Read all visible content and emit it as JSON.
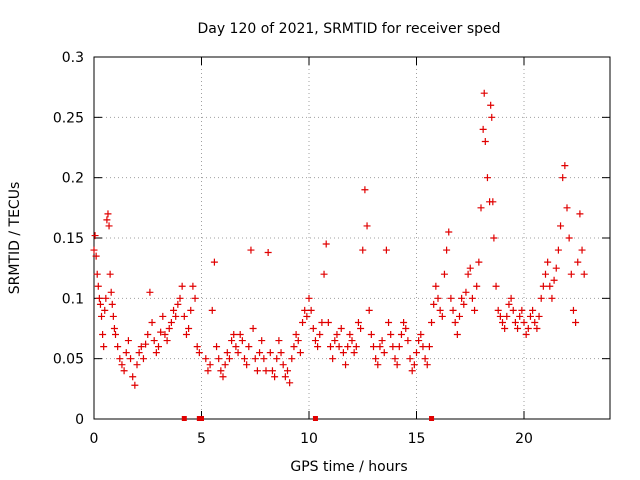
{
  "chart_data": {
    "type": "scatter",
    "title": "Day 120 of 2021, SRMTID for receiver sped",
    "xlabel": "GPS time / hours",
    "ylabel": "SRMTID / TECUs",
    "xlim": [
      0,
      24
    ],
    "ylim": [
      0,
      0.3
    ],
    "xticks": [
      0,
      5,
      10,
      15,
      20
    ],
    "xtick_labels": [
      "0",
      "5",
      "10",
      "15",
      "20"
    ],
    "yticks": [
      0,
      0.05,
      0.1,
      0.15,
      0.2,
      0.25,
      0.3
    ],
    "ytick_labels": [
      "0",
      "0.05",
      "0.1",
      "0.15",
      "0.2",
      "0.25",
      "0.3"
    ],
    "grid": true,
    "marker": "+",
    "color": "#e00000",
    "series": [
      {
        "name": "SRMTID",
        "points": [
          [
            0.0,
            0.14
          ],
          [
            0.05,
            0.152
          ],
          [
            0.1,
            0.135
          ],
          [
            0.15,
            0.12
          ],
          [
            0.2,
            0.11
          ],
          [
            0.25,
            0.1
          ],
          [
            0.3,
            0.095
          ],
          [
            0.35,
            0.085
          ],
          [
            0.4,
            0.07
          ],
          [
            0.45,
            0.06
          ],
          [
            0.5,
            0.09
          ],
          [
            0.55,
            0.1
          ],
          [
            0.6,
            0.165
          ],
          [
            0.65,
            0.17
          ],
          [
            0.7,
            0.16
          ],
          [
            0.75,
            0.12
          ],
          [
            0.8,
            0.105
          ],
          [
            0.85,
            0.095
          ],
          [
            0.9,
            0.085
          ],
          [
            0.95,
            0.075
          ],
          [
            1.0,
            0.07
          ],
          [
            1.1,
            0.06
          ],
          [
            1.2,
            0.05
          ],
          [
            1.3,
            0.045
          ],
          [
            1.4,
            0.04
          ],
          [
            1.5,
            0.055
          ],
          [
            1.6,
            0.065
          ],
          [
            1.7,
            0.05
          ],
          [
            1.8,
            0.035
          ],
          [
            1.9,
            0.028
          ],
          [
            2.0,
            0.045
          ],
          [
            2.1,
            0.055
          ],
          [
            2.2,
            0.06
          ],
          [
            2.3,
            0.05
          ],
          [
            2.4,
            0.062
          ],
          [
            2.5,
            0.07
          ],
          [
            2.6,
            0.105
          ],
          [
            2.7,
            0.08
          ],
          [
            2.8,
            0.065
          ],
          [
            2.9,
            0.055
          ],
          [
            3.0,
            0.06
          ],
          [
            3.1,
            0.072
          ],
          [
            3.2,
            0.085
          ],
          [
            3.3,
            0.07
          ],
          [
            3.4,
            0.065
          ],
          [
            3.5,
            0.075
          ],
          [
            3.6,
            0.08
          ],
          [
            3.7,
            0.09
          ],
          [
            3.8,
            0.085
          ],
          [
            3.9,
            0.095
          ],
          [
            4.0,
            0.1
          ],
          [
            4.1,
            0.11
          ],
          [
            4.2,
            0.085
          ],
          [
            4.3,
            0.07
          ],
          [
            4.4,
            0.075
          ],
          [
            4.5,
            0.09
          ],
          [
            4.6,
            0.11
          ],
          [
            4.7,
            0.1
          ],
          [
            4.8,
            0.06
          ],
          [
            4.9,
            0.055
          ],
          [
            5.2,
            0.05
          ],
          [
            5.3,
            0.04
          ],
          [
            5.4,
            0.045
          ],
          [
            5.5,
            0.09
          ],
          [
            5.6,
            0.13
          ],
          [
            5.7,
            0.06
          ],
          [
            5.8,
            0.05
          ],
          [
            5.9,
            0.04
          ],
          [
            6.0,
            0.035
          ],
          [
            6.1,
            0.045
          ],
          [
            6.2,
            0.055
          ],
          [
            6.3,
            0.05
          ],
          [
            6.4,
            0.065
          ],
          [
            6.5,
            0.07
          ],
          [
            6.6,
            0.06
          ],
          [
            6.7,
            0.055
          ],
          [
            6.8,
            0.07
          ],
          [
            6.9,
            0.065
          ],
          [
            7.0,
            0.05
          ],
          [
            7.1,
            0.045
          ],
          [
            7.2,
            0.06
          ],
          [
            7.3,
            0.14
          ],
          [
            7.4,
            0.075
          ],
          [
            7.5,
            0.05
          ],
          [
            7.6,
            0.04
          ],
          [
            7.7,
            0.055
          ],
          [
            7.8,
            0.065
          ],
          [
            7.9,
            0.05
          ],
          [
            8.0,
            0.04
          ],
          [
            8.1,
            0.138
          ],
          [
            8.2,
            0.055
          ],
          [
            8.3,
            0.04
          ],
          [
            8.4,
            0.035
          ],
          [
            8.5,
            0.05
          ],
          [
            8.6,
            0.065
          ],
          [
            8.7,
            0.055
          ],
          [
            8.8,
            0.045
          ],
          [
            8.9,
            0.035
          ],
          [
            9.0,
            0.04
          ],
          [
            9.1,
            0.03
          ],
          [
            9.2,
            0.05
          ],
          [
            9.3,
            0.06
          ],
          [
            9.4,
            0.07
          ],
          [
            9.5,
            0.065
          ],
          [
            9.6,
            0.055
          ],
          [
            9.7,
            0.08
          ],
          [
            9.8,
            0.09
          ],
          [
            9.9,
            0.085
          ],
          [
            10.0,
            0.1
          ],
          [
            10.1,
            0.09
          ],
          [
            10.2,
            0.075
          ],
          [
            10.3,
            0.065
          ],
          [
            10.4,
            0.06
          ],
          [
            10.5,
            0.07
          ],
          [
            10.6,
            0.08
          ],
          [
            10.7,
            0.12
          ],
          [
            10.8,
            0.145
          ],
          [
            10.9,
            0.08
          ],
          [
            11.0,
            0.06
          ],
          [
            11.1,
            0.05
          ],
          [
            11.2,
            0.065
          ],
          [
            11.3,
            0.07
          ],
          [
            11.4,
            0.06
          ],
          [
            11.5,
            0.075
          ],
          [
            11.6,
            0.055
          ],
          [
            11.7,
            0.045
          ],
          [
            11.8,
            0.06
          ],
          [
            11.9,
            0.07
          ],
          [
            12.0,
            0.065
          ],
          [
            12.1,
            0.055
          ],
          [
            12.2,
            0.06
          ],
          [
            12.3,
            0.08
          ],
          [
            12.4,
            0.075
          ],
          [
            12.5,
            0.14
          ],
          [
            12.6,
            0.19
          ],
          [
            12.7,
            0.16
          ],
          [
            12.8,
            0.09
          ],
          [
            12.9,
            0.07
          ],
          [
            13.0,
            0.06
          ],
          [
            13.1,
            0.05
          ],
          [
            13.2,
            0.045
          ],
          [
            13.3,
            0.06
          ],
          [
            13.4,
            0.065
          ],
          [
            13.5,
            0.055
          ],
          [
            13.6,
            0.14
          ],
          [
            13.7,
            0.08
          ],
          [
            13.8,
            0.07
          ],
          [
            13.9,
            0.06
          ],
          [
            14.0,
            0.05
          ],
          [
            14.1,
            0.045
          ],
          [
            14.2,
            0.06
          ],
          [
            14.3,
            0.07
          ],
          [
            14.4,
            0.08
          ],
          [
            14.5,
            0.075
          ],
          [
            14.6,
            0.065
          ],
          [
            14.7,
            0.05
          ],
          [
            14.8,
            0.04
          ],
          [
            14.9,
            0.045
          ],
          [
            15.0,
            0.055
          ],
          [
            15.1,
            0.065
          ],
          [
            15.2,
            0.07
          ],
          [
            15.3,
            0.06
          ],
          [
            15.4,
            0.05
          ],
          [
            15.5,
            0.045
          ],
          [
            15.6,
            0.06
          ],
          [
            15.7,
            0.08
          ],
          [
            15.8,
            0.095
          ],
          [
            15.9,
            0.11
          ],
          [
            16.0,
            0.1
          ],
          [
            16.1,
            0.09
          ],
          [
            16.2,
            0.085
          ],
          [
            16.3,
            0.12
          ],
          [
            16.4,
            0.14
          ],
          [
            16.5,
            0.155
          ],
          [
            16.6,
            0.1
          ],
          [
            16.7,
            0.09
          ],
          [
            16.8,
            0.08
          ],
          [
            16.9,
            0.07
          ],
          [
            17.0,
            0.085
          ],
          [
            17.1,
            0.1
          ],
          [
            17.2,
            0.095
          ],
          [
            17.3,
            0.105
          ],
          [
            17.4,
            0.12
          ],
          [
            17.5,
            0.125
          ],
          [
            17.6,
            0.1
          ],
          [
            17.7,
            0.09
          ],
          [
            17.8,
            0.11
          ],
          [
            17.9,
            0.13
          ],
          [
            18.0,
            0.175
          ],
          [
            18.1,
            0.24
          ],
          [
            18.15,
            0.27
          ],
          [
            18.2,
            0.23
          ],
          [
            18.3,
            0.2
          ],
          [
            18.4,
            0.18
          ],
          [
            18.45,
            0.26
          ],
          [
            18.5,
            0.25
          ],
          [
            18.55,
            0.18
          ],
          [
            18.6,
            0.15
          ],
          [
            18.7,
            0.11
          ],
          [
            18.8,
            0.09
          ],
          [
            18.9,
            0.085
          ],
          [
            19.0,
            0.08
          ],
          [
            19.1,
            0.075
          ],
          [
            19.2,
            0.085
          ],
          [
            19.3,
            0.095
          ],
          [
            19.4,
            0.1
          ],
          [
            19.5,
            0.09
          ],
          [
            19.6,
            0.08
          ],
          [
            19.7,
            0.075
          ],
          [
            19.8,
            0.085
          ],
          [
            19.9,
            0.09
          ],
          [
            20.0,
            0.08
          ],
          [
            20.1,
            0.07
          ],
          [
            20.2,
            0.075
          ],
          [
            20.3,
            0.085
          ],
          [
            20.4,
            0.09
          ],
          [
            20.5,
            0.08
          ],
          [
            20.6,
            0.075
          ],
          [
            20.7,
            0.085
          ],
          [
            20.8,
            0.1
          ],
          [
            20.9,
            0.11
          ],
          [
            21.0,
            0.12
          ],
          [
            21.1,
            0.13
          ],
          [
            21.2,
            0.11
          ],
          [
            21.3,
            0.1
          ],
          [
            21.4,
            0.115
          ],
          [
            21.5,
            0.125
          ],
          [
            21.6,
            0.14
          ],
          [
            21.7,
            0.16
          ],
          [
            21.8,
            0.2
          ],
          [
            21.9,
            0.21
          ],
          [
            22.0,
            0.175
          ],
          [
            22.1,
            0.15
          ],
          [
            22.2,
            0.12
          ],
          [
            22.3,
            0.09
          ],
          [
            22.4,
            0.08
          ],
          [
            22.5,
            0.13
          ],
          [
            22.6,
            0.17
          ],
          [
            22.7,
            0.14
          ],
          [
            22.8,
            0.12
          ]
        ]
      }
    ],
    "gap_markers_x": [
      4.2,
      4.9,
      5.0,
      10.3,
      15.7
    ]
  }
}
